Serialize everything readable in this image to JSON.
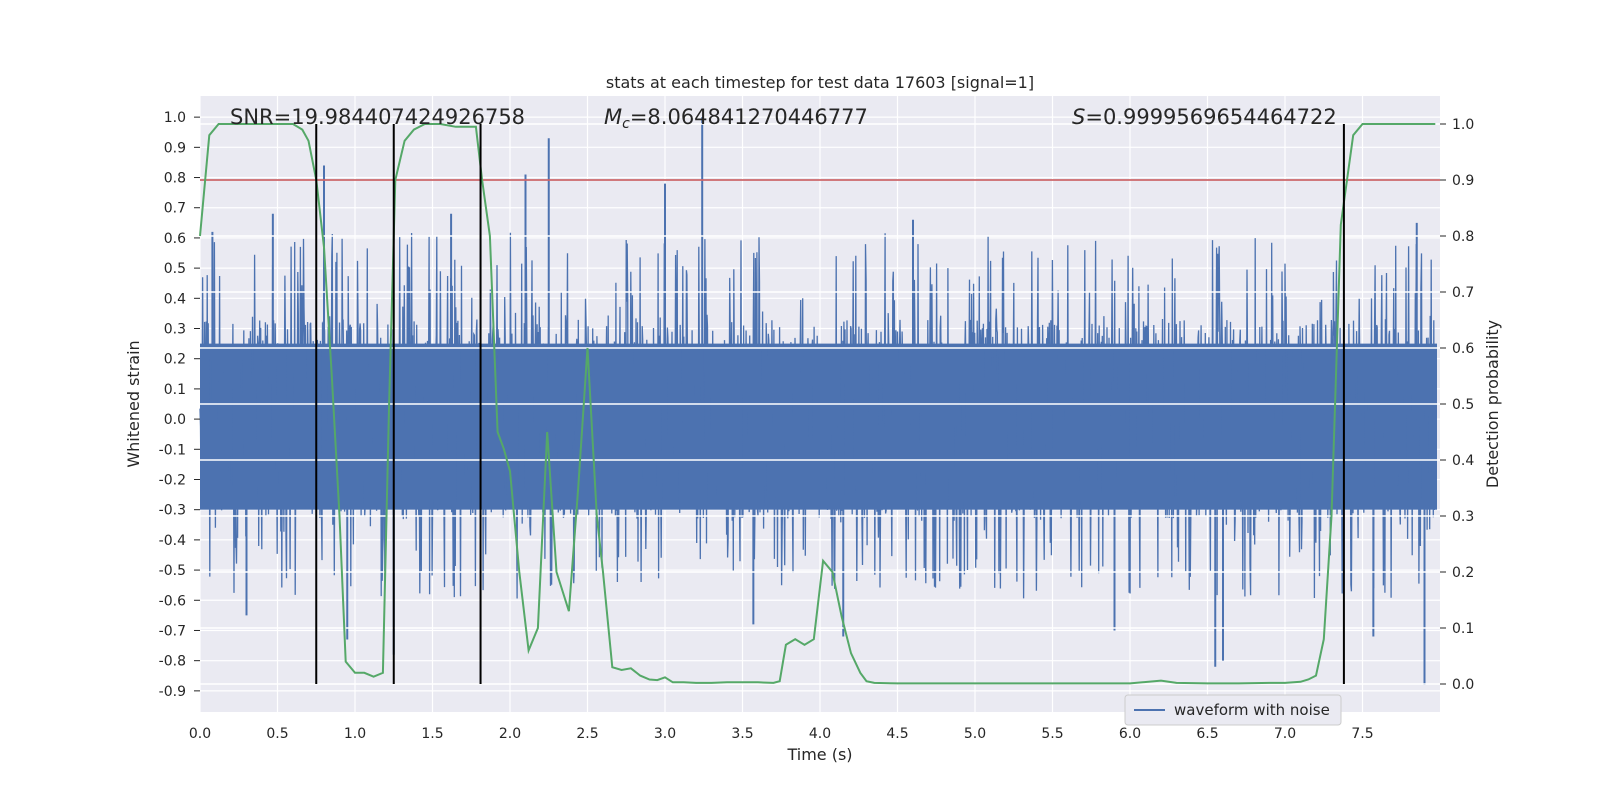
{
  "chart_data": {
    "type": "line",
    "title": "stats at each timestep for test data 17603 [signal=1]",
    "xlabel": "Time (s)",
    "ylabel": "Whitened strain",
    "y2label": "Detection probability",
    "xlim": [
      0.0,
      8.0
    ],
    "ylim": [
      -0.97,
      1.07
    ],
    "y2lim": [
      -0.05,
      1.05
    ],
    "xticks": [
      "0.0",
      "0.5",
      "1.0",
      "1.5",
      "2.0",
      "2.5",
      "3.0",
      "3.5",
      "4.0",
      "4.5",
      "5.0",
      "5.5",
      "6.0",
      "6.5",
      "7.0",
      "7.5"
    ],
    "yticks": [
      "1.0",
      "0.9",
      "0.8",
      "0.7",
      "0.6",
      "0.5",
      "0.4",
      "0.3",
      "0.2",
      "0.1",
      "0.0",
      "-0.1",
      "-0.2",
      "-0.3",
      "-0.4",
      "-0.5",
      "-0.6",
      "-0.7",
      "-0.8",
      "-0.9"
    ],
    "y2ticks": [
      "1.0",
      "0.9",
      "0.8",
      "0.7",
      "0.6",
      "0.5",
      "0.4",
      "0.3",
      "0.2",
      "0.1",
      "0.0"
    ],
    "grid": true,
    "legend": {
      "position": "lower-right",
      "entries": [
        "waveform with noise"
      ]
    },
    "annotations": {
      "snr": "SNR=19.984407424926758",
      "mc_symbol": "M",
      "mc_sub": "c",
      "mc_value": "=8.064841270446777",
      "s_symbol": "S",
      "s_value": "=0.9999569654464722"
    },
    "threshold": {
      "y2": 0.9,
      "color": "#c44e52"
    },
    "vlines": [
      0.75,
      1.25,
      1.81,
      7.38
    ],
    "series": [
      {
        "name": "waveform with noise",
        "axis": "left",
        "color": "#4c72b0",
        "description": "dense noisy whitened strain, envelope roughly -0.5 to 0.6 with spikes",
        "spikes": [
          [
            0.08,
            0.62
          ],
          [
            0.47,
            0.68
          ],
          [
            0.3,
            -0.65
          ],
          [
            0.8,
            0.84
          ],
          [
            0.95,
            -0.73
          ],
          [
            1.25,
            -0.78
          ],
          [
            1.62,
            0.68
          ],
          [
            2.1,
            0.81
          ],
          [
            2.25,
            0.93
          ],
          [
            3.24,
            1.0
          ],
          [
            3.57,
            -0.68
          ],
          [
            4.15,
            -0.72
          ],
          [
            5.9,
            -0.7
          ],
          [
            6.55,
            -0.82
          ],
          [
            6.6,
            -0.8
          ],
          [
            7.57,
            -0.72
          ],
          [
            7.9,
            -0.88
          ],
          [
            7.85,
            0.65
          ],
          [
            3.0,
            0.78
          ],
          [
            4.6,
            0.66
          ]
        ]
      },
      {
        "name": "",
        "axis": "right",
        "color": "#55a868",
        "x": [
          0.0,
          0.06,
          0.12,
          0.2,
          0.3,
          0.4,
          0.5,
          0.6,
          0.66,
          0.7,
          0.75,
          0.8,
          0.85,
          0.9,
          0.94,
          1.0,
          1.06,
          1.12,
          1.18,
          1.22,
          1.26,
          1.32,
          1.38,
          1.45,
          1.55,
          1.65,
          1.72,
          1.78,
          1.82,
          1.87,
          1.92,
          1.96,
          2.0,
          2.06,
          2.12,
          2.18,
          2.24,
          2.3,
          2.38,
          2.44,
          2.5,
          2.56,
          2.6,
          2.66,
          2.72,
          2.78,
          2.84,
          2.9,
          2.95,
          3.0,
          3.05,
          3.12,
          3.2,
          3.3,
          3.4,
          3.5,
          3.6,
          3.7,
          3.74,
          3.78,
          3.84,
          3.9,
          3.96,
          4.02,
          4.08,
          4.14,
          4.2,
          4.26,
          4.3,
          4.35,
          4.5,
          4.7,
          4.9,
          5.0,
          5.2,
          5.4,
          5.6,
          5.8,
          6.0,
          6.2,
          6.3,
          6.5,
          6.7,
          6.9,
          7.0,
          7.1,
          7.15,
          7.2,
          7.25,
          7.3,
          7.36,
          7.4,
          7.44,
          7.5,
          7.6,
          7.7,
          7.8,
          7.9,
          7.97
        ],
        "y": [
          0.8,
          0.98,
          1.0,
          1.0,
          1.0,
          1.0,
          1.0,
          1.0,
          0.99,
          0.97,
          0.9,
          0.78,
          0.55,
          0.3,
          0.04,
          0.02,
          0.02,
          0.013,
          0.02,
          0.5,
          0.9,
          0.97,
          0.99,
          1.0,
          1.0,
          0.995,
          0.995,
          0.995,
          0.9,
          0.8,
          0.45,
          0.42,
          0.38,
          0.2,
          0.06,
          0.1,
          0.45,
          0.2,
          0.13,
          0.35,
          0.6,
          0.3,
          0.2,
          0.03,
          0.025,
          0.028,
          0.015,
          0.008,
          0.007,
          0.012,
          0.003,
          0.003,
          0.002,
          0.002,
          0.003,
          0.003,
          0.003,
          0.002,
          0.005,
          0.07,
          0.08,
          0.07,
          0.08,
          0.22,
          0.2,
          0.12,
          0.055,
          0.02,
          0.005,
          0.002,
          0.001,
          0.001,
          0.001,
          0.001,
          0.001,
          0.001,
          0.001,
          0.001,
          0.001,
          0.006,
          0.002,
          0.001,
          0.001,
          0.002,
          0.002,
          0.004,
          0.008,
          0.015,
          0.08,
          0.3,
          0.82,
          0.9,
          0.98,
          1.0,
          1.0,
          1.0,
          1.0,
          1.0,
          1.0
        ]
      }
    ]
  }
}
